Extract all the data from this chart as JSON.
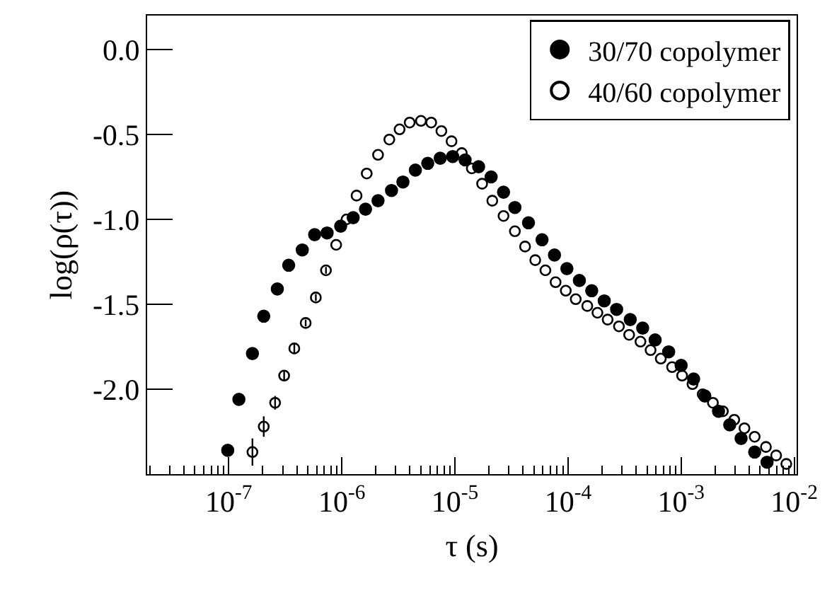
{
  "chart_data": {
    "type": "scatter",
    "xlabel": "τ (s)",
    "ylabel": "log(ρ(τ))",
    "log": "x",
    "xlim": [
      1.9e-08,
      0.0105
    ],
    "xticks": [
      {
        "value": 1e-07,
        "label": "10$^{-7}$"
      },
      {
        "value": 1e-06,
        "label": "10$^{-6}$"
      },
      {
        "value": 1e-05,
        "label": "10$^{-5}$"
      },
      {
        "value": 0.0001,
        "label": "10$^{-4}$"
      },
      {
        "value": 0.001,
        "label": "10$^{-3}$"
      },
      {
        "value": 0.01,
        "label": "10$^{-2}$"
      }
    ],
    "ylim": [
      -2.5,
      0.2
    ],
    "yticks": [
      {
        "value": -2.0,
        "label": "-2.0"
      },
      {
        "value": -1.5,
        "label": "-1.5"
      },
      {
        "value": -1.0,
        "label": "-1.0"
      },
      {
        "value": -0.5,
        "label": "-0.5"
      },
      {
        "value": 0.0,
        "label": "0.0"
      }
    ],
    "legend": "top right",
    "marker": "circle",
    "series": [
      {
        "name": "30/70 copolymer",
        "color": "#000000",
        "x": [
          9.8e-08,
          1.23e-07,
          1.62e-07,
          2.04e-07,
          2.69e-07,
          3.39e-07,
          4.47e-07,
          5.75e-07,
          7.41e-07,
          9.77e-07,
          1.26e-06,
          1.62e-06,
          2.09e-06,
          2.75e-06,
          3.47e-06,
          4.47e-06,
          5.75e-06,
          7.41e-06,
          9.55e-06,
          1.23e-05,
          1.62e-05,
          2.09e-05,
          2.69e-05,
          3.39e-05,
          4.47e-05,
          5.89e-05,
          7.59e-05,
          9.77e-05,
          0.000126,
          0.000162,
          0.000209,
          0.000269,
          0.000355,
          0.000457,
          0.000589,
          0.000776,
          0.001,
          0.00129,
          0.00162,
          0.00214,
          0.00269,
          0.00339,
          0.00447,
          0.00575
        ],
        "values": [
          -2.36,
          -2.06,
          -1.79,
          -1.57,
          -1.41,
          -1.27,
          -1.18,
          -1.09,
          -1.08,
          -1.04,
          -0.99,
          -0.94,
          -0.89,
          -0.83,
          -0.78,
          -0.71,
          -0.67,
          -0.64,
          -0.63,
          -0.65,
          -0.69,
          -0.75,
          -0.84,
          -0.93,
          -1.02,
          -1.12,
          -1.21,
          -1.29,
          -1.36,
          -1.42,
          -1.48,
          -1.53,
          -1.59,
          -1.64,
          -1.71,
          -1.78,
          -1.86,
          -1.94,
          -2.04,
          -2.13,
          -2.21,
          -2.29,
          -2.37,
          -2.43
        ]
      },
      {
        "name": "40/60 copolymer",
        "color": "#000000",
        "x": [
          1.62e-07,
          2.04e-07,
          2.57e-07,
          3.09e-07,
          3.8e-07,
          4.79e-07,
          5.89e-07,
          7.24e-07,
          8.91e-07,
          1.1e-06,
          1.35e-06,
          1.66e-06,
          2.09e-06,
          2.63e-06,
          3.24e-06,
          3.98e-06,
          5.01e-06,
          6.17e-06,
          7.59e-06,
          9.33e-06,
          1.15e-05,
          1.41e-05,
          1.74e-05,
          2.14e-05,
          2.69e-05,
          3.39e-05,
          4.17e-05,
          5.13e-05,
          6.31e-05,
          7.76e-05,
          9.55e-05,
          0.000117,
          0.000148,
          0.000182,
          0.000224,
          0.000282,
          0.000347,
          0.000437,
          0.000537,
          0.000661,
          0.000832,
          0.00102,
          0.00126,
          0.00155,
          0.00191,
          0.00234,
          0.00295,
          0.00363,
          0.00447,
          0.00562,
          0.00692,
          0.00851
        ],
        "values": [
          -2.37,
          -2.22,
          -2.08,
          -1.92,
          -1.76,
          -1.61,
          -1.46,
          -1.3,
          -1.15,
          -1.0,
          -0.86,
          -0.73,
          -0.62,
          -0.53,
          -0.47,
          -0.43,
          -0.42,
          -0.43,
          -0.48,
          -0.54,
          -0.61,
          -0.7,
          -0.79,
          -0.89,
          -0.98,
          -1.07,
          -1.16,
          -1.24,
          -1.3,
          -1.37,
          -1.42,
          -1.47,
          -1.51,
          -1.55,
          -1.59,
          -1.63,
          -1.68,
          -1.72,
          -1.77,
          -1.82,
          -1.87,
          -1.92,
          -1.97,
          -2.03,
          -2.08,
          -2.13,
          -2.18,
          -2.23,
          -2.28,
          -2.34,
          -2.39,
          -2.44
        ],
        "errors": [
          0.08,
          0.06,
          0.04,
          0.03,
          0.03,
          0.02,
          0.02,
          0.02,
          null,
          null,
          null,
          null,
          null,
          null,
          null,
          null,
          null,
          null,
          null,
          null,
          null,
          null,
          null,
          null,
          null,
          null,
          null,
          null,
          null,
          null,
          null,
          null,
          null,
          null,
          null,
          null,
          null,
          null,
          null,
          null,
          null,
          null,
          null,
          null,
          null,
          null,
          null,
          null,
          null,
          null,
          null,
          null
        ]
      }
    ]
  }
}
